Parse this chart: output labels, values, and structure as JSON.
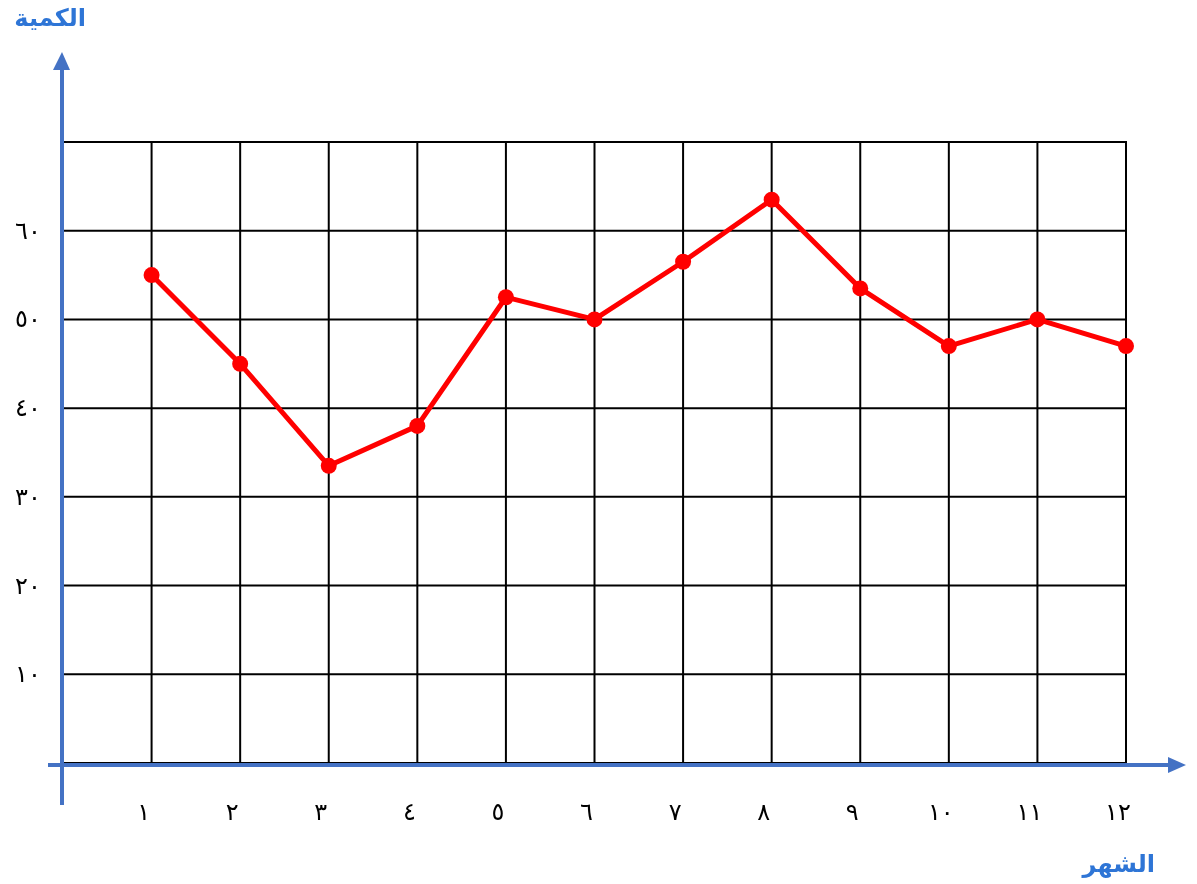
{
  "chart_data": {
    "type": "line",
    "xlabel": "الشهر",
    "ylabel": "الكمية",
    "x": [
      1,
      2,
      3,
      4,
      5,
      6,
      7,
      8,
      9,
      10,
      11,
      12
    ],
    "series": [
      {
        "color": "#ff0000",
        "values": [
          55,
          45,
          33.5,
          38,
          52.5,
          50,
          56.5,
          63.5,
          53.5,
          47,
          50,
          47
        ]
      }
    ],
    "xlim": [
      0,
      12
    ],
    "ylim": [
      0,
      70
    ],
    "xticks": [
      {
        "value": 1,
        "label": "١"
      },
      {
        "value": 2,
        "label": "٢"
      },
      {
        "value": 3,
        "label": "٣"
      },
      {
        "value": 4,
        "label": "٤"
      },
      {
        "value": 5,
        "label": "٥"
      },
      {
        "value": 6,
        "label": "٦"
      },
      {
        "value": 7,
        "label": "٧"
      },
      {
        "value": 8,
        "label": "٨"
      },
      {
        "value": 9,
        "label": "٩"
      },
      {
        "value": 10,
        "label": "١٠"
      },
      {
        "value": 11,
        "label": "١١"
      },
      {
        "value": 12,
        "label": "١٢"
      }
    ],
    "yticks": [
      {
        "value": 10,
        "label": "١٠"
      },
      {
        "value": 20,
        "label": "٢٠"
      },
      {
        "value": 30,
        "label": "٣٠"
      },
      {
        "value": 40,
        "label": "٤٠"
      },
      {
        "value": 50,
        "label": "٥٠"
      },
      {
        "value": 60,
        "label": "٦٠"
      },
      {
        "value": 70,
        "label": null
      }
    ],
    "grid": true,
    "marker": "circle",
    "line_style": "solid"
  }
}
